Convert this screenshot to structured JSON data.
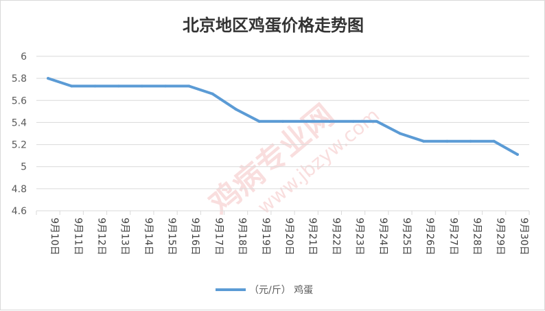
{
  "chart_data": {
    "type": "line",
    "title": "北京地区鸡蛋价格走势图",
    "categories": [
      "9月10日",
      "9月11日",
      "9月12日",
      "9月13日",
      "9月14日",
      "9月15日",
      "9月16日",
      "9月17日",
      "9月18日",
      "9月19日",
      "9月20日",
      "9月21日",
      "9月22日",
      "9月23日",
      "9月24日",
      "9月25日",
      "9月26日",
      "9月27日",
      "9月28日",
      "9月29日",
      "9月30日"
    ],
    "series": [
      {
        "name": "（元/斤） 鸡蛋",
        "color": "#5b9bd5",
        "values": [
          5.8,
          5.73,
          5.73,
          5.73,
          5.73,
          5.73,
          5.73,
          5.66,
          5.52,
          5.41,
          5.41,
          5.41,
          5.41,
          5.41,
          5.41,
          5.3,
          5.23,
          5.23,
          5.23,
          5.23,
          5.11
        ]
      }
    ],
    "ylim": [
      4.6,
      6
    ],
    "yticks": [
      "4.6",
      "4.8",
      "5",
      "5.2",
      "5.4",
      "5.6",
      "5.8",
      "6"
    ],
    "grid": true,
    "legend_position": "bottom",
    "watermark": "鸡病专业网 www.jbzyw.com"
  },
  "colors": {
    "line": "#5b9bd5",
    "grid": "#d9d9d9",
    "watermark": "#e05050"
  }
}
